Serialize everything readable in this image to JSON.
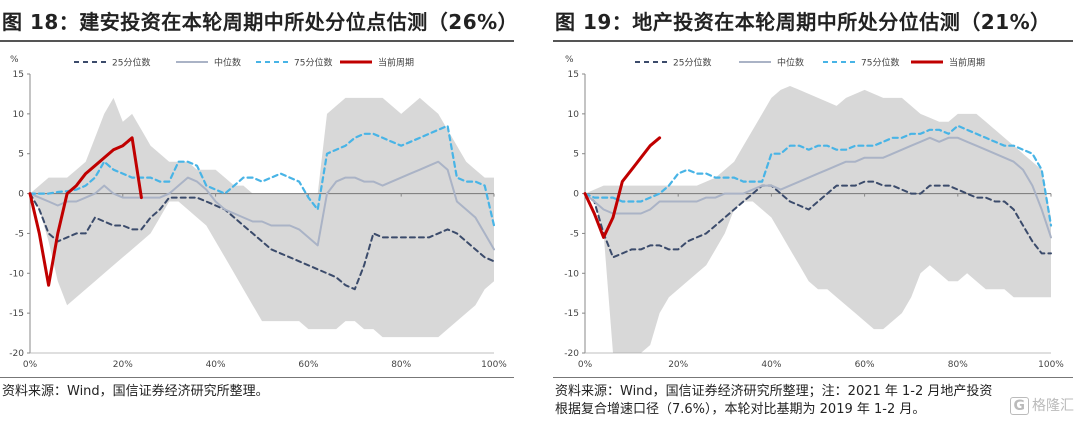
{
  "watermark": "格隆汇",
  "chart_data": [
    {
      "type": "line",
      "title": "图 18：建安投资在本轮周期中所处分位点估测（26%）",
      "ylabel": "%",
      "ylim": [
        -20,
        15
      ],
      "yticks": [
        15,
        10,
        5,
        0,
        -5,
        -10,
        -15,
        -20
      ],
      "xlim": [
        0,
        100
      ],
      "xticks": [
        0,
        20,
        40,
        60,
        80,
        100
      ],
      "xtick_labels": [
        "0%",
        "20%",
        "40%",
        "60%",
        "80%",
        "100%"
      ],
      "legend_position": "top",
      "legend": [
        "25分位数",
        "中位数",
        "75分位数",
        "当前周期"
      ],
      "colors": {
        "p25": "#3b4b6b",
        "median": "#aab3c6",
        "p75": "#48b4e6",
        "current": "#c00000",
        "band": "#d8d8d8"
      },
      "band": {
        "x": [
          0,
          2,
          4,
          6,
          8,
          10,
          12,
          14,
          16,
          18,
          20,
          22,
          24,
          26,
          28,
          30,
          32,
          34,
          36,
          38,
          40,
          42,
          44,
          46,
          48,
          50,
          52,
          54,
          56,
          58,
          60,
          62,
          64,
          66,
          68,
          70,
          72,
          74,
          76,
          78,
          80,
          82,
          84,
          86,
          88,
          90,
          92,
          94,
          96,
          98,
          100
        ],
        "upper": [
          0,
          1,
          2,
          2,
          2,
          3,
          4,
          7,
          10,
          12,
          9,
          10,
          8,
          6,
          5,
          4,
          4,
          4,
          3,
          3,
          3,
          2,
          1,
          1,
          0,
          0,
          0,
          0,
          0,
          0,
          0,
          0,
          10,
          11,
          12,
          12,
          12,
          12,
          12,
          11,
          10,
          11,
          12,
          11,
          10,
          8,
          6,
          4,
          3,
          2,
          2
        ],
        "lower": [
          0,
          -2,
          -6,
          -11,
          -14,
          -13,
          -12,
          -11,
          -10,
          -9,
          -8,
          -7,
          -6,
          -5,
          -3,
          -1,
          -1,
          -2,
          -3,
          -4,
          -6,
          -8,
          -10,
          -12,
          -14,
          -16,
          -16,
          -16,
          -16,
          -16,
          -17,
          -17,
          -17,
          -17,
          -16,
          -16,
          -17,
          -17,
          -18,
          -18,
          -18,
          -18,
          -18,
          -18,
          -18,
          -17,
          -16,
          -15,
          -14,
          -12,
          -11
        ]
      },
      "series": [
        {
          "name": "25分位数",
          "style": "dashed",
          "x": [
            0,
            2,
            4,
            6,
            8,
            10,
            12,
            14,
            16,
            18,
            20,
            22,
            24,
            26,
            28,
            30,
            32,
            34,
            36,
            38,
            40,
            42,
            44,
            46,
            48,
            50,
            52,
            54,
            56,
            58,
            60,
            62,
            64,
            66,
            68,
            70,
            72,
            74,
            76,
            78,
            80,
            82,
            84,
            86,
            88,
            90,
            92,
            94,
            96,
            98,
            100
          ],
          "values": [
            0,
            -2,
            -5,
            -6,
            -5.5,
            -5,
            -5,
            -3,
            -3.5,
            -4,
            -4,
            -4.5,
            -4.5,
            -3,
            -2,
            -0.5,
            -0.5,
            -0.5,
            -0.5,
            -1,
            -1.5,
            -2,
            -3,
            -4,
            -5,
            -6,
            -7,
            -7.5,
            -8,
            -8.5,
            -9,
            -9.5,
            -10,
            -10.5,
            -11.5,
            -12,
            -9,
            -5,
            -5.5,
            -5.5,
            -5.5,
            -5.5,
            -5.5,
            -5.5,
            -5,
            -4.5,
            -5,
            -6,
            -7,
            -8,
            -8.5
          ]
        },
        {
          "name": "中位数",
          "style": "solid",
          "x": [
            0,
            2,
            4,
            6,
            8,
            10,
            12,
            14,
            16,
            18,
            20,
            22,
            24,
            26,
            28,
            30,
            32,
            34,
            36,
            38,
            40,
            42,
            44,
            46,
            48,
            50,
            52,
            54,
            56,
            58,
            60,
            62,
            64,
            66,
            68,
            70,
            72,
            74,
            76,
            78,
            80,
            82,
            84,
            86,
            88,
            90,
            92,
            94,
            96,
            98,
            100
          ],
          "values": [
            0,
            -0.5,
            -1,
            -1.5,
            -1,
            -1,
            -0.5,
            0,
            1,
            0,
            -0.5,
            -0.5,
            -0.5,
            -0.5,
            -0.5,
            0,
            1,
            2,
            1.5,
            0.5,
            -1,
            -2,
            -2.5,
            -3,
            -3.5,
            -3.5,
            -4,
            -4,
            -4,
            -4.5,
            -5.5,
            -6.5,
            0,
            1.5,
            2,
            2,
            1.5,
            1.5,
            1,
            1.5,
            2,
            2.5,
            3,
            3.5,
            4,
            3,
            -1,
            -2,
            -3,
            -5,
            -7
          ]
        },
        {
          "name": "75分位数",
          "style": "dashed",
          "x": [
            0,
            2,
            4,
            6,
            8,
            10,
            12,
            14,
            16,
            18,
            20,
            22,
            24,
            26,
            28,
            30,
            32,
            34,
            36,
            38,
            40,
            42,
            44,
            46,
            48,
            50,
            52,
            54,
            56,
            58,
            60,
            62,
            64,
            66,
            68,
            70,
            72,
            74,
            76,
            78,
            80,
            82,
            84,
            86,
            88,
            90,
            92,
            94,
            96,
            98,
            100
          ],
          "values": [
            0,
            0,
            0,
            0.2,
            0.3,
            0.5,
            1,
            2,
            4,
            3,
            2.5,
            2,
            2,
            2,
            1.5,
            1.5,
            4,
            4,
            3.5,
            1,
            0.5,
            0,
            1,
            2,
            2,
            1.5,
            2,
            2.5,
            2,
            1.5,
            -0.5,
            -2,
            5,
            5.5,
            6,
            7,
            7.5,
            7.5,
            7,
            6.5,
            6,
            6.5,
            7,
            7.5,
            8,
            8.5,
            2,
            1.5,
            1.5,
            1,
            -4
          ]
        },
        {
          "name": "当前周期",
          "style": "solid-thick",
          "x": [
            0,
            2,
            4,
            6,
            8,
            10,
            12,
            14,
            16,
            18,
            20,
            22,
            24
          ],
          "values": [
            0,
            -5,
            -11.5,
            -5,
            0,
            1,
            2.5,
            3.5,
            4.5,
            5.5,
            6,
            7,
            -0.5
          ]
        }
      ]
    },
    {
      "type": "line",
      "title": "图 19：地产投资在本轮周期中所处分位估测（21%）",
      "ylabel": "%",
      "ylim": [
        -20,
        15
      ],
      "yticks": [
        15,
        10,
        5,
        0,
        -5,
        -10,
        -15,
        -20
      ],
      "xlim": [
        0,
        100
      ],
      "xticks": [
        0,
        20,
        40,
        60,
        80,
        100
      ],
      "xtick_labels": [
        "0%",
        "20%",
        "40%",
        "60%",
        "80%",
        "100%"
      ],
      "legend_position": "top",
      "legend": [
        "25分位数",
        "中位数",
        "75分位数",
        "当前周期"
      ],
      "colors": {
        "p25": "#3b4b6b",
        "median": "#aab3c6",
        "p75": "#48b4e6",
        "current": "#c00000",
        "band": "#d8d8d8"
      },
      "band": {
        "x": [
          0,
          2,
          4,
          6,
          8,
          10,
          12,
          14,
          16,
          18,
          20,
          22,
          24,
          26,
          28,
          30,
          32,
          34,
          36,
          38,
          40,
          42,
          44,
          46,
          48,
          50,
          52,
          54,
          56,
          58,
          60,
          62,
          64,
          66,
          68,
          70,
          72,
          74,
          76,
          78,
          80,
          82,
          84,
          86,
          88,
          90,
          92,
          94,
          96,
          98,
          100
        ],
        "upper": [
          0,
          0.5,
          1,
          1,
          1,
          1,
          1,
          1,
          1,
          1,
          1,
          1,
          1,
          1.5,
          2,
          3,
          4,
          6,
          8,
          10,
          12,
          13,
          13.5,
          13,
          12.5,
          12,
          11.5,
          11,
          12,
          12.5,
          13,
          12.5,
          12,
          12,
          12,
          11,
          10,
          9.5,
          9,
          9,
          10,
          10,
          10,
          9,
          8,
          7,
          6,
          5,
          4,
          3,
          -3
        ],
        "lower": [
          0,
          -1,
          -5,
          -20,
          -20,
          -20,
          -20,
          -19,
          -15,
          -13,
          -12,
          -11,
          -10,
          -9,
          -7,
          -5,
          -2,
          -1,
          -1,
          -2,
          -3,
          -5,
          -7,
          -9,
          -11,
          -12,
          -12,
          -13,
          -14,
          -15,
          -16,
          -17,
          -17,
          -16,
          -15,
          -13,
          -10,
          -9,
          -10,
          -11,
          -11,
          -10,
          -11,
          -12,
          -12,
          -12,
          -13,
          -13,
          -13,
          -13,
          -13
        ]
      },
      "series": [
        {
          "name": "25分位数",
          "style": "dashed",
          "x": [
            0,
            2,
            4,
            6,
            8,
            10,
            12,
            14,
            16,
            18,
            20,
            22,
            24,
            26,
            28,
            30,
            32,
            34,
            36,
            38,
            40,
            42,
            44,
            46,
            48,
            50,
            52,
            54,
            56,
            58,
            60,
            62,
            64,
            66,
            68,
            70,
            72,
            74,
            76,
            78,
            80,
            82,
            84,
            86,
            88,
            90,
            92,
            94,
            96,
            98,
            100
          ],
          "values": [
            0,
            -1,
            -5,
            -8,
            -7.5,
            -7,
            -7,
            -6.5,
            -6.5,
            -7,
            -7,
            -6,
            -5.5,
            -5,
            -4,
            -3,
            -2,
            -1,
            0,
            1,
            1,
            0,
            -1,
            -1.5,
            -2,
            -1,
            0,
            1,
            1,
            1,
            1.5,
            1.5,
            1,
            1,
            0.5,
            0,
            0,
            1,
            1,
            1,
            0.5,
            0,
            -0.5,
            -0.5,
            -1,
            -1,
            -2,
            -4,
            -6,
            -7.5,
            -7.5
          ]
        },
        {
          "name": "中位数",
          "style": "solid",
          "x": [
            0,
            2,
            4,
            6,
            8,
            10,
            12,
            14,
            16,
            18,
            20,
            22,
            24,
            26,
            28,
            30,
            32,
            34,
            36,
            38,
            40,
            42,
            44,
            46,
            48,
            50,
            52,
            54,
            56,
            58,
            60,
            62,
            64,
            66,
            68,
            70,
            72,
            74,
            76,
            78,
            80,
            82,
            84,
            86,
            88,
            90,
            92,
            94,
            96,
            98,
            100
          ],
          "values": [
            0,
            -1,
            -2,
            -2.5,
            -2.5,
            -2.5,
            -2.5,
            -2,
            -1,
            -1,
            -1,
            -1,
            -1,
            -0.5,
            -0.5,
            0,
            0,
            0,
            0.5,
            1,
            1,
            0.5,
            1,
            1.5,
            2,
            2.5,
            3,
            3.5,
            4,
            4,
            4.5,
            4.5,
            4.5,
            5,
            5.5,
            6,
            6.5,
            7,
            6.5,
            7,
            7,
            6.5,
            6,
            5.5,
            5,
            4.5,
            4,
            3,
            1,
            -2,
            -5.5
          ]
        },
        {
          "name": "75分位数",
          "style": "dashed",
          "x": [
            0,
            2,
            4,
            6,
            8,
            10,
            12,
            14,
            16,
            18,
            20,
            22,
            24,
            26,
            28,
            30,
            32,
            34,
            36,
            38,
            40,
            42,
            44,
            46,
            48,
            50,
            52,
            54,
            56,
            58,
            60,
            62,
            64,
            66,
            68,
            70,
            72,
            74,
            76,
            78,
            80,
            82,
            84,
            86,
            88,
            90,
            92,
            94,
            96,
            98,
            100
          ],
          "values": [
            0,
            -0.5,
            -0.5,
            -0.5,
            -1,
            -1,
            -1,
            -0.5,
            0,
            1,
            2.5,
            3,
            2.5,
            2.5,
            2,
            2,
            2,
            1.5,
            1.5,
            1.5,
            5,
            5,
            6,
            6,
            5.5,
            6,
            6,
            5.5,
            5.5,
            6,
            6,
            6,
            6.5,
            7,
            7,
            7.5,
            7.5,
            8,
            8,
            7.5,
            8.5,
            8,
            7.5,
            7,
            6.5,
            6,
            6,
            5.5,
            5,
            3,
            -4
          ]
        },
        {
          "name": "当前周期",
          "style": "solid-thick",
          "x": [
            0,
            2,
            4,
            6,
            8,
            10,
            12,
            14,
            16
          ],
          "values": [
            0,
            -2.5,
            -5.5,
            -3,
            1.5,
            3,
            4.5,
            6,
            7
          ]
        }
      ]
    }
  ],
  "panels": [
    {
      "title": "图 18：建安投资在本轮周期中所处分位点估测（26%）",
      "source": [
        "资料来源：Wind，国信证券经济研究所整理。"
      ]
    },
    {
      "title": "图 19：地产投资在本轮周期中所处分位估测（21%）",
      "source": [
        "资料来源：Wind，国信证券经济研究所整理；注：2021 年 1-2 月地产投资",
        "根据复合增速口径（7.6%），本轮对比基期为 2019 年 1-2 月。"
      ]
    }
  ]
}
